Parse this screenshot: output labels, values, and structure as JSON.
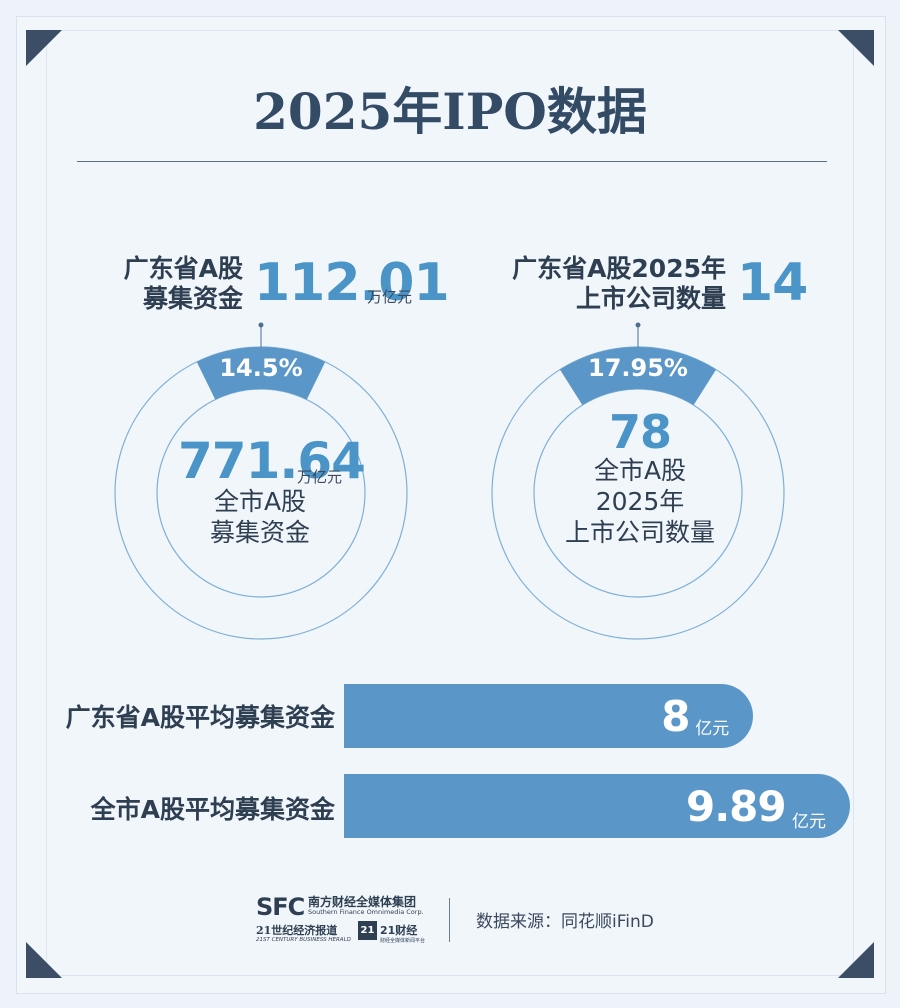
{
  "title": "2025年IPO数据",
  "chart_data": [
    {
      "type": "pie",
      "center_value": "771.64",
      "center_unit": "万亿元",
      "center_label_lines": [
        "全市A股",
        "募集资金"
      ],
      "highlight_label_lines": [
        "广东省A股",
        "募集资金"
      ],
      "highlight_value": "112.01",
      "highlight_unit": "万亿元",
      "slice_label": "14.5%",
      "slice_fraction": 0.145
    },
    {
      "type": "pie",
      "center_value": "78",
      "center_unit": "",
      "center_label_lines": [
        "全市A股",
        "2025年",
        "上市公司数量"
      ],
      "highlight_label_lines": [
        "广东省A股2025年",
        "上市公司数量"
      ],
      "highlight_value": "14",
      "highlight_unit": "",
      "slice_label": "17.95%",
      "slice_fraction": 0.1795
    },
    {
      "type": "bar",
      "categories": [
        "广东省A股平均募集资金",
        "全市A股平均募集资金"
      ],
      "values": [
        8,
        9.89
      ],
      "value_labels": [
        "8",
        "9.89"
      ],
      "unit": "亿元"
    }
  ],
  "colors": {
    "accent": "#4b94c8",
    "bar": "#5a97c8",
    "slice": "#5a97c8",
    "ring": "#7fb0d6",
    "dark": "#344b66",
    "background": "#edf3f9"
  },
  "footer": {
    "logo_sfc": "SFC",
    "logo_cn": "南方财经全媒体集团",
    "logo_en": "Southern Finance Omnimedia Corp.",
    "logo_21": "21世纪经济报道",
    "logo_21_en": "21ST CENTURY BUSINESS HERALD",
    "logo_21_badge": "21",
    "logo_21_caijing": "21财经",
    "logo_21_caijing_sub": "财经全媒体新闻平台",
    "source": "数据来源：同花顺iFinD"
  }
}
